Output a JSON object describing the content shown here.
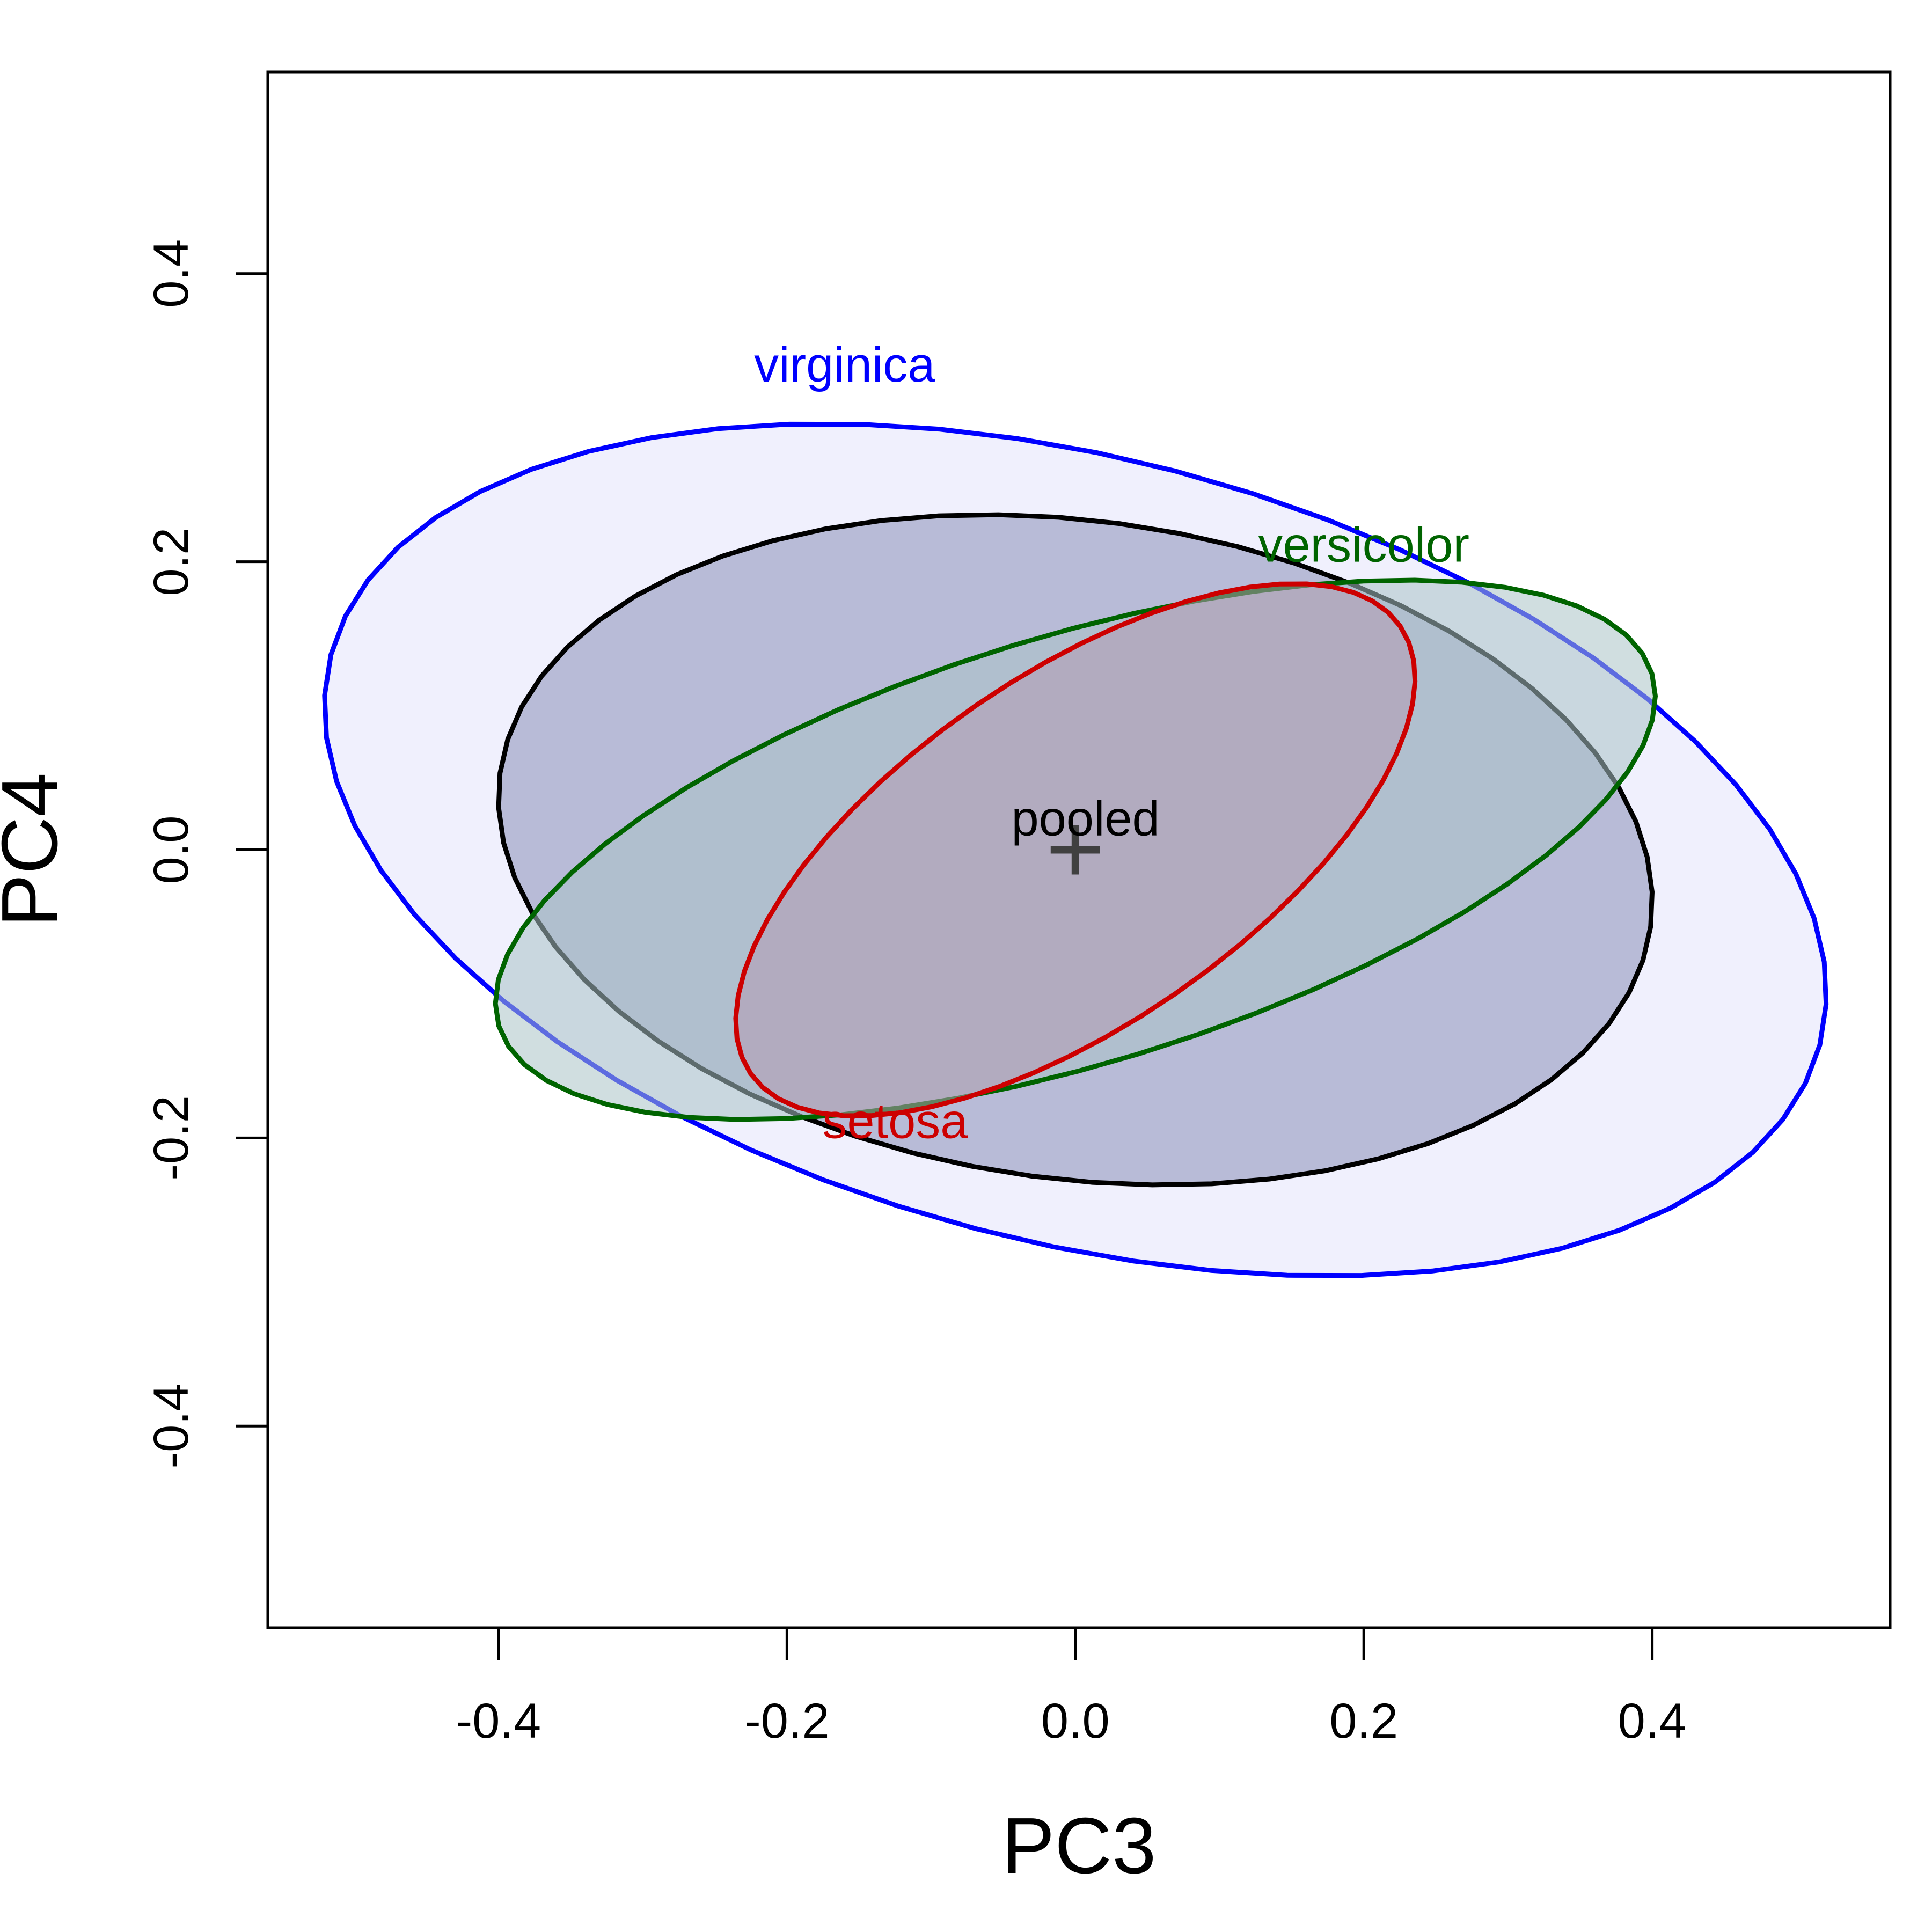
{
  "chart_data": {
    "type": "ellipse",
    "xlabel": "PC3",
    "ylabel": "PC4",
    "xlim": [
      -0.56,
      0.565
    ],
    "ylim": [
      -0.54,
      0.54
    ],
    "xticks": [
      -0.4,
      -0.2,
      0.0,
      0.2,
      0.4
    ],
    "yticks": [
      -0.4,
      -0.2,
      0.0,
      0.2,
      0.4
    ],
    "xtick_labels": [
      "-0.4",
      "-0.2",
      "0.0",
      "0.2",
      "0.4"
    ],
    "ytick_labels": [
      "-0.4",
      "-0.2",
      "0.0",
      "0.2",
      "0.4"
    ],
    "series": [
      {
        "name": "virginica",
        "color": "#0000ff",
        "fill": "#e3e3fb",
        "center": [
          0.0,
          0.0
        ],
        "a": 0.5337,
        "b": 0.2719,
        "angle_deg": -14.7,
        "label": "virginica",
        "label_pos": [
          -0.16,
          0.325
        ]
      },
      {
        "name": "pooled",
        "color": "#000000",
        "fill": "#8b8fb8",
        "center": [
          0.0,
          0.0
        ],
        "a": 0.4025,
        "b": 0.2285,
        "angle_deg": -7.6,
        "label": "pooled",
        "label_pos": [
          0.007,
          0.01
        ]
      },
      {
        "name": "versicolor",
        "color": "#006400",
        "fill": "#a9c2c7",
        "center": [
          0.0,
          0.0
        ],
        "a": 0.4181,
        "b": 0.1483,
        "angle_deg": 17.0,
        "label": "versicolor",
        "label_pos": [
          0.2,
          0.2
        ]
      },
      {
        "name": "setosa",
        "color": "#cd0000",
        "fill": "#b59ab3",
        "center": [
          0.0,
          0.0
        ],
        "a": 0.2736,
        "b": 0.1216,
        "angle_deg": 34.6,
        "label": "setosa",
        "label_pos": [
          -0.125,
          -0.2
        ]
      }
    ],
    "center_marker": {
      "x": 0.0,
      "y": 0.0,
      "symbol": "+",
      "color": "#404040"
    },
    "grid": false,
    "legend": "none"
  }
}
